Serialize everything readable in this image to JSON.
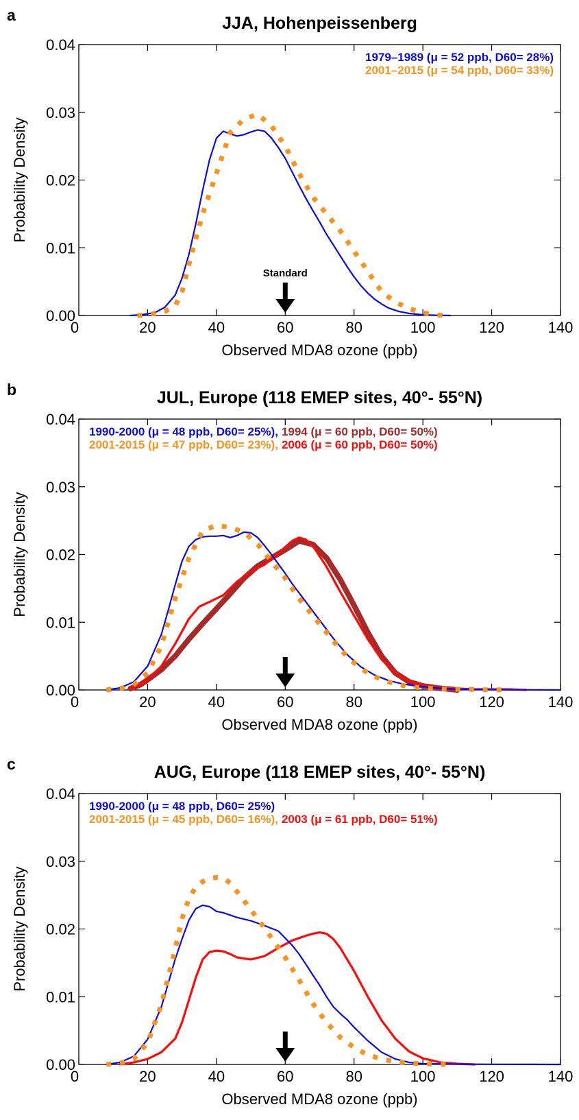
{
  "colors": {
    "blue": "#0b0bea",
    "orange": "#f7931e",
    "darkred": "#a52a2a",
    "red": "#ff0a0a"
  },
  "chart_data": [
    {
      "panel": "a",
      "type": "line",
      "title": "JJA, Hohenpeissenberg",
      "xlabel": "Observed MDA8 ozone (ppb)",
      "ylabel": "Probability Density",
      "xlim": [
        0,
        140
      ],
      "ylim": [
        0,
        0.04
      ],
      "xticks": [
        "0",
        "20",
        "40",
        "60",
        "80",
        "100",
        "120",
        "140"
      ],
      "yticks": [
        "0.00",
        "0.01",
        "0.02",
        "0.03",
        "0.04"
      ],
      "legend": [
        {
          "label": "1979–1989 (μ = 52 ppb, D60= 28%)",
          "color": "#0b0bea"
        },
        {
          "label": "2001–2015 (μ = 54 ppb, D60= 33%)",
          "color": "#f7931e"
        }
      ],
      "annotation": {
        "label": "Standard",
        "x": 60
      },
      "series": [
        {
          "color": "#0b0bea",
          "style": "solid",
          "width": 2.2,
          "x": [
            15,
            18,
            22,
            25,
            28,
            30,
            32,
            34,
            36,
            38,
            40,
            42,
            44,
            46,
            48,
            50,
            52,
            54,
            56,
            58,
            60,
            62,
            64,
            66,
            68,
            70,
            72,
            74,
            76,
            78,
            80,
            82,
            84,
            86,
            88,
            90,
            93,
            96,
            100,
            104,
            108
          ],
          "y": [
            0,
            0.0001,
            0.0004,
            0.0012,
            0.003,
            0.0055,
            0.009,
            0.0135,
            0.0185,
            0.023,
            0.0262,
            0.0272,
            0.0268,
            0.0265,
            0.0267,
            0.0271,
            0.0274,
            0.0272,
            0.0262,
            0.0248,
            0.0232,
            0.0212,
            0.0192,
            0.0173,
            0.0155,
            0.0138,
            0.012,
            0.0104,
            0.0088,
            0.0072,
            0.0057,
            0.0044,
            0.0033,
            0.0024,
            0.0017,
            0.0011,
            0.0006,
            0.0003,
            0.0001,
            3e-05,
            0
          ]
        },
        {
          "color": "#f7931e",
          "style": "dotted",
          "width": 7,
          "x": [
            17,
            20,
            25,
            28,
            30,
            33,
            36,
            40,
            44,
            48,
            52,
            56,
            60,
            64,
            68,
            72,
            76,
            80,
            84,
            88,
            92,
            96,
            100,
            104,
            106
          ],
          "y": [
            0,
            0.0001,
            0.0006,
            0.0014,
            0.0035,
            0.0095,
            0.015,
            0.021,
            0.027,
            0.029,
            0.0297,
            0.028,
            0.025,
            0.021,
            0.0175,
            0.015,
            0.0125,
            0.0095,
            0.0065,
            0.0035,
            0.002,
            0.001,
            0.0004,
            0.0001,
            0
          ]
        }
      ]
    },
    {
      "panel": "b",
      "type": "line",
      "title": "JUL, Europe (118 EMEP sites, 40°- 55°N)",
      "xlabel": "Observed MDA8 ozone (ppb)",
      "ylabel": "Probability Density",
      "xlim": [
        0,
        140
      ],
      "ylim": [
        0,
        0.04
      ],
      "xticks": [
        "0",
        "20",
        "40",
        "60",
        "80",
        "100",
        "120",
        "140"
      ],
      "yticks": [
        "0.00",
        "0.01",
        "0.02",
        "0.03",
        "0.04"
      ],
      "legend": [
        {
          "label": "1990-2000 (μ = 48 ppb, D60= 25%),",
          "color": "#0b0bea"
        },
        {
          "label": "1994 (μ = 60 ppb, D60= 50%)",
          "color": "#a52a2a"
        },
        {
          "label": "2001-2015 (μ = 47 ppb, D60= 23%),",
          "color": "#f7931e"
        },
        {
          "label": "2006 (μ = 60 ppb, D60= 50%)",
          "color": "#ff0a0a"
        }
      ],
      "annotation": {
        "label": "",
        "x": 60
      },
      "series": [
        {
          "color": "#a52a2a",
          "style": "solid",
          "width": 8,
          "x": [
            15,
            18,
            20,
            24,
            28,
            32,
            36,
            40,
            44,
            48,
            52,
            56,
            60,
            64,
            68,
            72,
            76,
            80,
            84,
            88,
            92,
            96,
            100,
            104,
            108,
            110
          ],
          "y": [
            0.0002,
            0.0008,
            0.0015,
            0.003,
            0.005,
            0.0075,
            0.0098,
            0.012,
            0.0142,
            0.0165,
            0.0183,
            0.0195,
            0.0207,
            0.022,
            0.0215,
            0.0195,
            0.0163,
            0.0125,
            0.0085,
            0.005,
            0.0025,
            0.0012,
            0.0006,
            0.0003,
            0.0001,
            0
          ]
        },
        {
          "color": "#ff0a0a",
          "style": "solid",
          "width": 3.2,
          "x": [
            15,
            18,
            20,
            24,
            28,
            32,
            35,
            38,
            42,
            46,
            50,
            54,
            58,
            62,
            64,
            66,
            68,
            72,
            76,
            80,
            84,
            88,
            92,
            96,
            100,
            105,
            110,
            115,
            120,
            125,
            130
          ],
          "y": [
            0.0002,
            0.0008,
            0.0016,
            0.0035,
            0.0068,
            0.0105,
            0.0123,
            0.013,
            0.014,
            0.016,
            0.0175,
            0.0185,
            0.0202,
            0.022,
            0.0225,
            0.0222,
            0.0213,
            0.0182,
            0.0145,
            0.011,
            0.0075,
            0.0045,
            0.0025,
            0.0013,
            0.0007,
            0.0003,
            0.0002,
            0.0001,
            0.0001,
            0.0001,
            0
          ]
        },
        {
          "color": "#0b0bea",
          "style": "solid",
          "width": 2.2,
          "x": [
            8,
            12,
            16,
            20,
            24,
            26,
            28,
            30,
            32,
            34,
            36,
            38,
            40,
            42,
            44,
            46,
            48,
            50,
            52,
            54,
            56,
            58,
            60,
            62,
            66,
            70,
            74,
            78,
            82,
            86,
            90,
            94,
            98,
            102,
            106,
            110,
            120,
            130,
            140
          ],
          "y": [
            0,
            0.0003,
            0.0012,
            0.0035,
            0.0082,
            0.0118,
            0.0155,
            0.019,
            0.0212,
            0.0222,
            0.0226,
            0.0227,
            0.0227,
            0.0228,
            0.0225,
            0.0228,
            0.0233,
            0.0232,
            0.0225,
            0.0213,
            0.02,
            0.0186,
            0.0172,
            0.0157,
            0.013,
            0.0103,
            0.0076,
            0.0052,
            0.0034,
            0.0022,
            0.0014,
            0.0009,
            0.0006,
            0.0004,
            0.0002,
            0.0001,
            5e-05,
            2e-05,
            0
          ]
        },
        {
          "color": "#f7931e",
          "style": "dotted",
          "width": 7,
          "x": [
            8,
            12,
            16,
            20,
            24,
            28,
            32,
            36,
            40,
            44,
            48,
            52,
            56,
            60,
            64,
            68,
            72,
            76,
            80,
            84,
            88,
            92,
            96,
            100,
            104,
            108,
            112,
            116,
            120,
            124
          ],
          "y": [
            0,
            0.0002,
            0.0008,
            0.0025,
            0.0065,
            0.0135,
            0.0195,
            0.0235,
            0.0243,
            0.024,
            0.0233,
            0.0215,
            0.019,
            0.0165,
            0.0135,
            0.011,
            0.0085,
            0.006,
            0.004,
            0.0025,
            0.0015,
            0.0009,
            0.0005,
            0.0003,
            0.0002,
            0.0001,
            0.0001,
            5e-05,
            3e-05,
            0
          ]
        }
      ]
    },
    {
      "panel": "c",
      "type": "line",
      "title": "AUG, Europe (118 EMEP sites, 40°- 55°N)",
      "xlabel": "Observed MDA8 ozone (ppb)",
      "ylabel": "Probability Density",
      "xlim": [
        0,
        140
      ],
      "ylim": [
        0,
        0.04
      ],
      "xticks": [
        "0",
        "20",
        "40",
        "60",
        "80",
        "100",
        "120",
        "140"
      ],
      "yticks": [
        "0.00",
        "0.01",
        "0.02",
        "0.03",
        "0.04"
      ],
      "legend": [
        {
          "label": "1990-2000 (μ = 48 ppb, D60= 25%)",
          "color": "#0b0bea"
        },
        {
          "label": "2001-2015 (μ = 45 ppb, D60= 16%),",
          "color": "#f7931e"
        },
        {
          "label": "2003 (μ = 61 ppb, D60= 51%)",
          "color": "#ff0a0a"
        }
      ],
      "annotation": {
        "label": "",
        "x": 60
      },
      "series": [
        {
          "color": "#ff0a0a",
          "style": "solid",
          "width": 3.2,
          "x": [
            12,
            16,
            20,
            24,
            28,
            30,
            32,
            34,
            36,
            38,
            40,
            42,
            44,
            46,
            50,
            54,
            58,
            62,
            66,
            68,
            70,
            72,
            74,
            76,
            80,
            84,
            88,
            92,
            96,
            100,
            105,
            110,
            115
          ],
          "y": [
            0,
            0.0003,
            0.0008,
            0.0018,
            0.0038,
            0.0062,
            0.0095,
            0.0128,
            0.0155,
            0.0166,
            0.0168,
            0.0167,
            0.0163,
            0.0158,
            0.0155,
            0.016,
            0.0172,
            0.0183,
            0.019,
            0.0193,
            0.0195,
            0.0193,
            0.0185,
            0.0172,
            0.0138,
            0.01,
            0.0065,
            0.0038,
            0.0019,
            0.0009,
            0.0003,
            0.0001,
            0
          ]
        },
        {
          "color": "#0b0bea",
          "style": "solid",
          "width": 2.2,
          "x": [
            8,
            12,
            16,
            20,
            24,
            26,
            28,
            30,
            32,
            34,
            36,
            38,
            40,
            42,
            46,
            50,
            54,
            58,
            62,
            64,
            66,
            68,
            70,
            72,
            74,
            76,
            78,
            80,
            84,
            88,
            92,
            96,
            100,
            110,
            120,
            130,
            140
          ],
          "y": [
            0,
            0.0003,
            0.0012,
            0.0037,
            0.0085,
            0.012,
            0.0155,
            0.0185,
            0.0213,
            0.023,
            0.0235,
            0.0233,
            0.0226,
            0.0224,
            0.0217,
            0.0212,
            0.0205,
            0.0197,
            0.0176,
            0.0163,
            0.0148,
            0.0132,
            0.0117,
            0.01,
            0.0085,
            0.0075,
            0.0066,
            0.0055,
            0.0035,
            0.0018,
            0.0008,
            0.0003,
            0.0001,
            5e-05,
            2e-05,
            1e-05,
            0
          ]
        },
        {
          "color": "#f7931e",
          "style": "dotted",
          "width": 7,
          "x": [
            8,
            12,
            16,
            20,
            24,
            28,
            30,
            32,
            34,
            36,
            38,
            40,
            42,
            44,
            46,
            48,
            52,
            56,
            60,
            64,
            68,
            72,
            76,
            80,
            84,
            88,
            92,
            96,
            100,
            104,
            108
          ],
          "y": [
            0,
            0.0002,
            0.0008,
            0.0032,
            0.0088,
            0.017,
            0.0215,
            0.0245,
            0.0262,
            0.027,
            0.0275,
            0.0276,
            0.0275,
            0.0268,
            0.0255,
            0.0242,
            0.0215,
            0.0187,
            0.0158,
            0.0125,
            0.009,
            0.0062,
            0.004,
            0.0025,
            0.0014,
            0.0008,
            0.0004,
            0.0002,
            0.0001,
            5e-05,
            0
          ]
        }
      ]
    }
  ]
}
